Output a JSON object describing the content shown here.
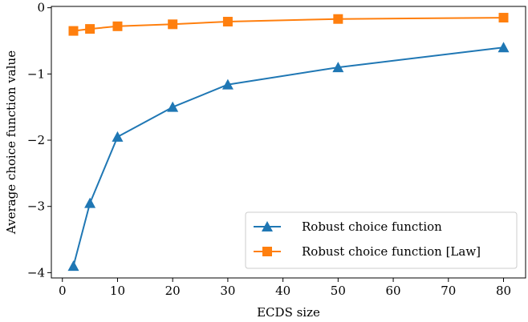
{
  "chart_data": {
    "type": "line",
    "xlabel": "ECDS size",
    "ylabel": "Average choice function value",
    "xlim": [
      -2,
      84
    ],
    "ylim": [
      -4.08,
      0.02
    ],
    "xticks": [
      0,
      10,
      20,
      30,
      40,
      50,
      60,
      70,
      80
    ],
    "yticks": [
      0,
      -1,
      -2,
      -3,
      -4
    ],
    "ytick_labels": [
      "0",
      "−1",
      "−2",
      "−3",
      "−4"
    ],
    "grid": false,
    "legend_position": "lower-right",
    "series": [
      {
        "name": "Robust choice function",
        "color": "#1f77b4",
        "marker": "triangle",
        "x": [
          2,
          5,
          10,
          20,
          30,
          50,
          80
        ],
        "y": [
          -3.9,
          -2.95,
          -1.95,
          -1.5,
          -1.16,
          -0.9,
          -0.6
        ]
      },
      {
        "name": "Robust choice function [Law]",
        "color": "#ff7f0e",
        "marker": "square",
        "x": [
          2,
          5,
          10,
          20,
          30,
          50,
          80
        ],
        "y": [
          -0.35,
          -0.32,
          -0.28,
          -0.25,
          -0.21,
          -0.17,
          -0.15
        ]
      }
    ]
  }
}
